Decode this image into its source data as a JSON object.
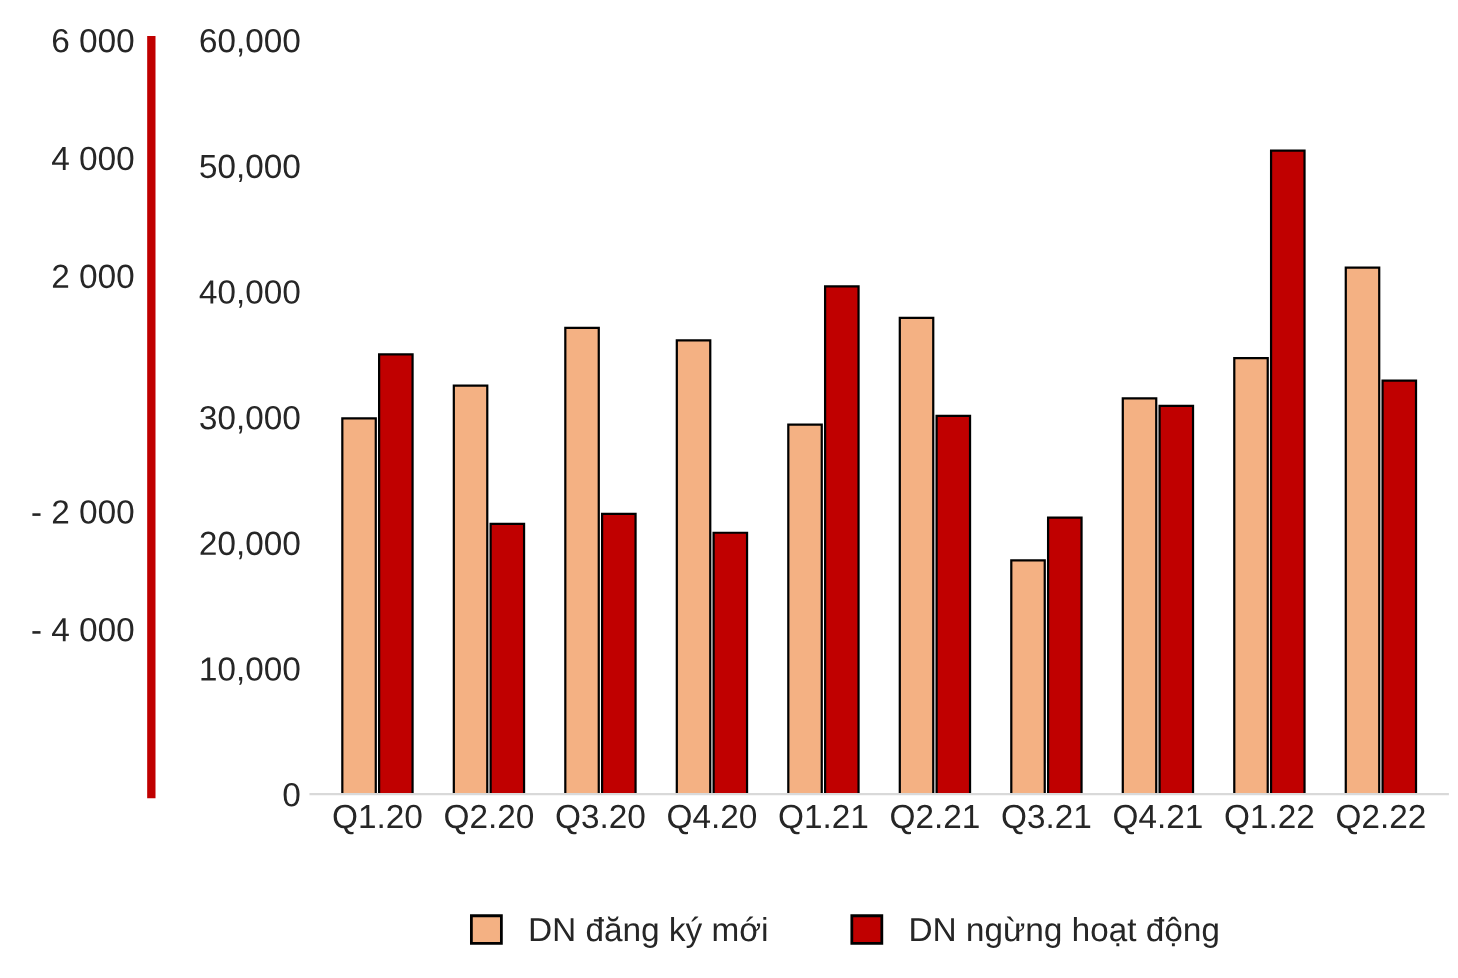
{
  "chart_data": {
    "type": "bar",
    "categories": [
      "Q1.20",
      "Q2.20",
      "Q3.20",
      "Q4.20",
      "Q1.21",
      "Q2.21",
      "Q3.21",
      "Q4.21",
      "Q1.22",
      "Q2.22"
    ],
    "series": [
      {
        "name": "DN đăng ký mới",
        "color": "#f4b183",
        "values": [
          29900,
          32500,
          37100,
          36100,
          29400,
          37900,
          18600,
          31500,
          34700,
          41900
        ]
      },
      {
        "name": "DN ngừng hoạt động",
        "color": "#c00000",
        "values": [
          35000,
          21500,
          22300,
          20800,
          40400,
          30100,
          22000,
          30900,
          51200,
          32900
        ]
      }
    ],
    "ylim": [
      0,
      60000
    ],
    "yticks": [
      {
        "value": 0,
        "label": "0"
      },
      {
        "value": 10000,
        "label": "10,000"
      },
      {
        "value": 20000,
        "label": "20,000"
      },
      {
        "value": 30000,
        "label": "30,000"
      },
      {
        "value": 40000,
        "label": "40,000"
      },
      {
        "value": 50000,
        "label": "50,000"
      },
      {
        "value": 60000,
        "label": "60,000"
      }
    ],
    "y2lim": [
      -6800,
      6000
    ],
    "y2ticks": [
      {
        "value": 6000,
        "label": "6 000"
      },
      {
        "value": 4000,
        "label": "4 000"
      },
      {
        "value": 2000,
        "label": "2 000"
      },
      {
        "value": -2000,
        "label": "- 2 000"
      },
      {
        "value": -4000,
        "label": "- 4 000"
      }
    ],
    "grid": false,
    "legend": "bottom"
  }
}
